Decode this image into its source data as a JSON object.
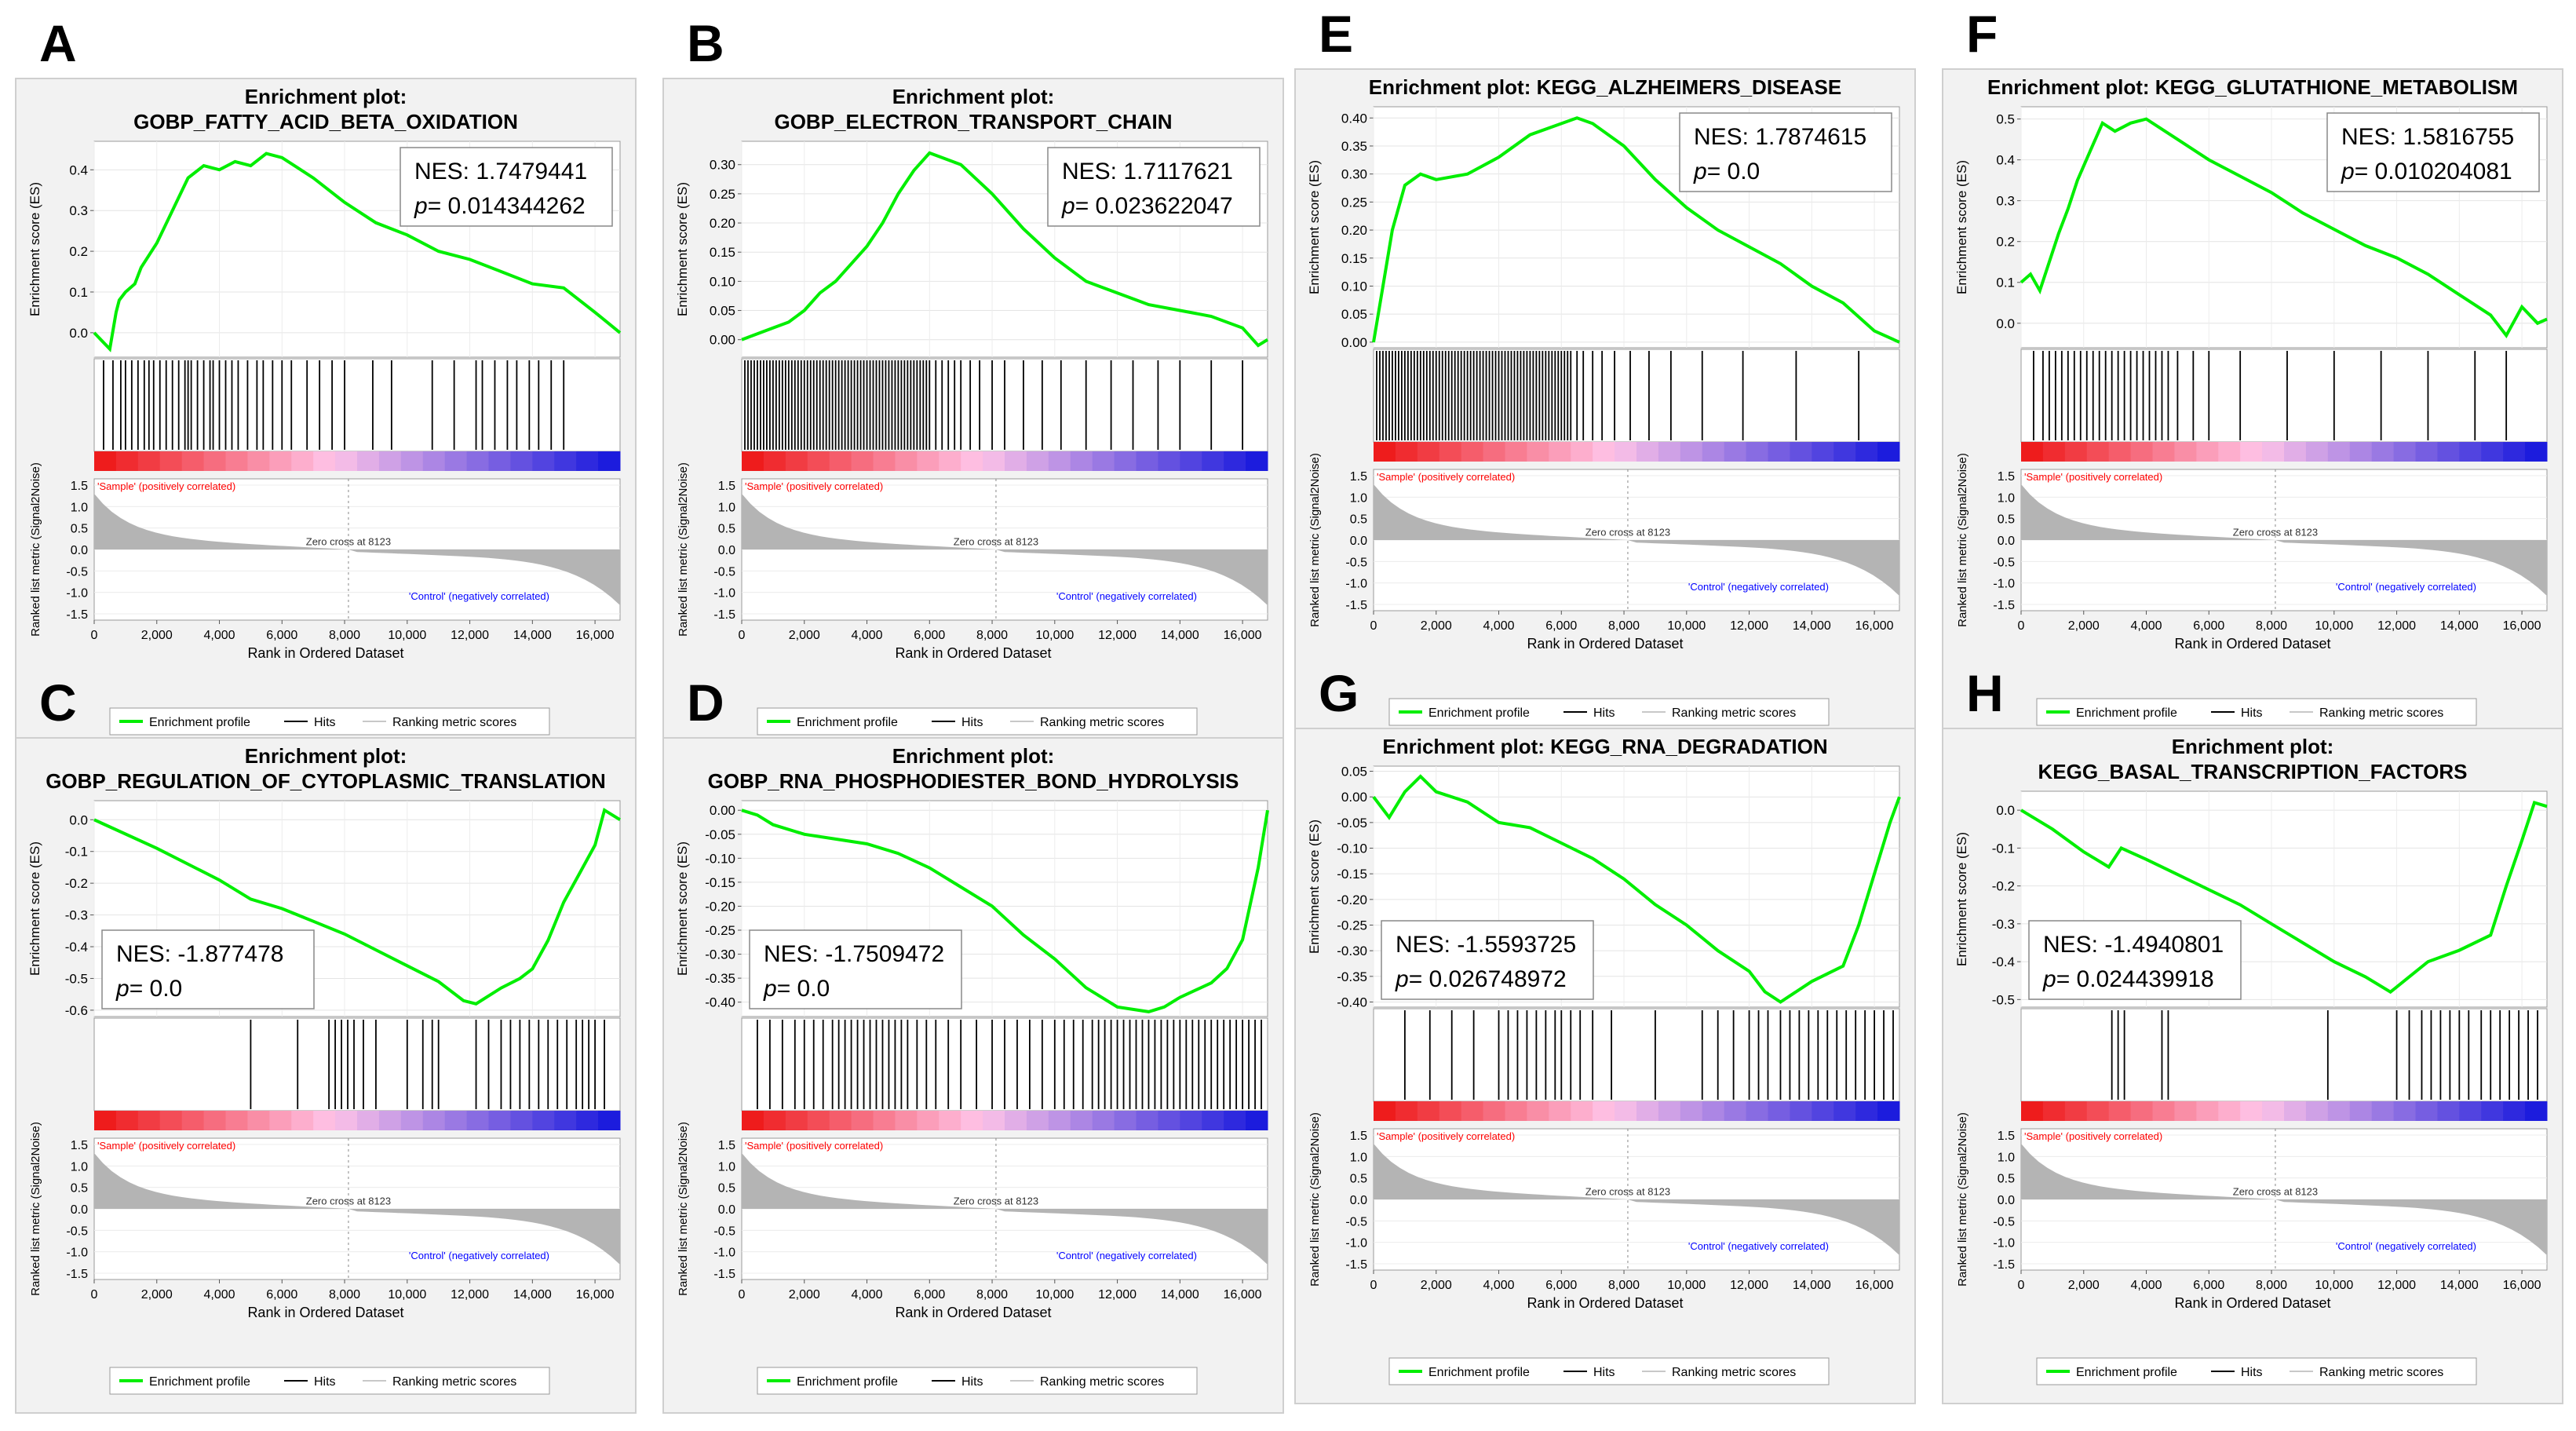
{
  "figure": {
    "common": {
      "plot_label": "Enrichment plot:",
      "y_label_es": "Enrichment score (ES)",
      "y_label_metric": "Ranked list metric (Signal2Noise)",
      "x_label": "Rank in Ordered Dataset",
      "zero_cross": "Zero cross at 8123",
      "pos_label": "'Sample' (positively correlated)",
      "neg_label": "'Control' (negatively correlated)",
      "legend": [
        "Enrichment profile",
        "Hits",
        "Ranking metric scores"
      ],
      "nes_prefix": "NES: ",
      "p_prefix": "p",
      "p_suffix": "= ",
      "x_ticks": [
        "0",
        "2,000",
        "4,000",
        "6,000",
        "8,000",
        "10,000",
        "12,000",
        "14,000",
        "16,000"
      ],
      "metric_ticks": [
        "1.5",
        "1.0",
        "0.5",
        "0.0",
        "-0.5",
        "-1.0",
        "-1.5"
      ]
    },
    "colors": {
      "enrichment_line": "#00ee00",
      "hits": "#000000",
      "metric_fill": "#b4b4b4",
      "pos_text": "#ff0000",
      "neg_text": "#0000ff",
      "panel_bg": "#f2f2f2",
      "bar_pos": "#ee1c1c",
      "bar_mid": "#ffc4e8",
      "bar_neg": "#1c1cdd"
    }
  },
  "chart_data": [
    {
      "panel": "A",
      "type": "line",
      "title": "Enrichment plot:",
      "subtitle": "GOBP_FATTY_ACID_BETA_OXIDATION",
      "nes": "1.7479441",
      "p": "0.014344262",
      "direction": "positive",
      "ylim": [
        -0.06,
        0.47
      ],
      "yticks": [
        "0.0",
        "0.1",
        "0.2",
        "0.3",
        "0.4"
      ],
      "x": [
        0,
        500,
        700,
        800,
        1000,
        1300,
        1500,
        2000,
        2500,
        3000,
        3500,
        4000,
        4500,
        5000,
        5500,
        6000,
        7000,
        8000,
        9000,
        10000,
        11000,
        12000,
        13000,
        14000,
        15000,
        16000,
        16800
      ],
      "es": [
        0,
        -0.04,
        0.05,
        0.08,
        0.1,
        0.12,
        0.16,
        0.22,
        0.3,
        0.38,
        0.41,
        0.4,
        0.42,
        0.41,
        0.44,
        0.43,
        0.38,
        0.32,
        0.27,
        0.24,
        0.2,
        0.18,
        0.15,
        0.12,
        0.11,
        0.05,
        0.0
      ],
      "hits": [
        300,
        600,
        850,
        1000,
        1200,
        1400,
        1600,
        1750,
        1900,
        2100,
        2300,
        2500,
        2700,
        2900,
        3000,
        3100,
        3300,
        3500,
        3700,
        3800,
        4000,
        4200,
        4400,
        4600,
        4900,
        5200,
        5400,
        5700,
        6000,
        6300,
        6800,
        7200,
        7600,
        8000,
        8900,
        9500,
        10800,
        11500,
        12200,
        12400,
        12800,
        13200,
        13500,
        13900,
        14200,
        14600,
        15000
      ]
    },
    {
      "panel": "B",
      "type": "line",
      "title": "Enrichment plot:",
      "subtitle": "GOBP_ELECTRON_TRANSPORT_CHAIN",
      "nes": "1.7117621",
      "p": "0.023622047",
      "direction": "positive",
      "ylim": [
        -0.03,
        0.34
      ],
      "yticks": [
        "0.00",
        "0.05",
        "0.10",
        "0.15",
        "0.20",
        "0.25",
        "0.30"
      ],
      "x": [
        0,
        500,
        1000,
        1500,
        2000,
        2500,
        3000,
        3500,
        4000,
        4500,
        5000,
        5500,
        6000,
        6500,
        7000,
        8000,
        9000,
        10000,
        11000,
        12000,
        13000,
        14000,
        15000,
        16000,
        16500,
        16800
      ],
      "es": [
        0,
        0.01,
        0.02,
        0.03,
        0.05,
        0.08,
        0.1,
        0.13,
        0.16,
        0.2,
        0.25,
        0.29,
        0.32,
        0.31,
        0.3,
        0.25,
        0.19,
        0.14,
        0.1,
        0.08,
        0.06,
        0.05,
        0.04,
        0.02,
        -0.01,
        0.0
      ],
      "hits": [
        100,
        200,
        300,
        400,
        500,
        600,
        700,
        800,
        900,
        1000,
        1100,
        1200,
        1300,
        1400,
        1500,
        1600,
        1700,
        1800,
        1900,
        2000,
        2100,
        2200,
        2300,
        2400,
        2500,
        2600,
        2700,
        2800,
        2900,
        3000,
        3100,
        3200,
        3300,
        3400,
        3500,
        3600,
        3700,
        3800,
        3900,
        4000,
        4100,
        4200,
        4300,
        4400,
        4500,
        4600,
        4700,
        4800,
        4900,
        5000,
        5100,
        5200,
        5300,
        5400,
        5500,
        5600,
        5700,
        5800,
        5900,
        6000,
        6200,
        6400,
        6600,
        6800,
        7000,
        7300,
        7600,
        8000,
        8400,
        9000,
        9600,
        10200,
        11000,
        11800,
        12500,
        13300,
        14000,
        15000,
        16000
      ]
    },
    {
      "panel": "C",
      "type": "line",
      "title": "Enrichment plot:",
      "subtitle": "GOBP_REGULATION_OF_CYTOPLASMIC_TRANSLATION",
      "nes": "-1.877478",
      "p": "0.0",
      "direction": "negative",
      "ylim": [
        -0.62,
        0.06
      ],
      "yticks": [
        "0.0",
        "-0.1",
        "-0.2",
        "-0.3",
        "-0.4",
        "-0.5",
        "-0.6"
      ],
      "x": [
        0,
        2000,
        4000,
        5000,
        6000,
        7000,
        8000,
        9000,
        10000,
        11000,
        11800,
        12200,
        13000,
        13600,
        14000,
        14500,
        15000,
        15500,
        16000,
        16300,
        16800
      ],
      "es": [
        0,
        -0.09,
        -0.19,
        -0.25,
        -0.28,
        -0.32,
        -0.36,
        -0.41,
        -0.46,
        -0.51,
        -0.57,
        -0.58,
        -0.53,
        -0.5,
        -0.47,
        -0.38,
        -0.26,
        -0.17,
        -0.08,
        0.03,
        0.0
      ],
      "hits": [
        5000,
        6500,
        7500,
        7700,
        7900,
        8100,
        8300,
        8600,
        9000,
        10000,
        10500,
        10800,
        11000,
        12200,
        12600,
        13000,
        13300,
        13600,
        13900,
        14200,
        14500,
        14800,
        15100,
        15400,
        15600,
        15800,
        16000,
        16300
      ]
    },
    {
      "panel": "D",
      "type": "line",
      "title": "Enrichment plot:",
      "subtitle": "GOBP_RNA_PHOSPHODIESTER_BOND_HYDROLYSIS",
      "nes": "-1.7509472",
      "p": "0.0",
      "direction": "negative",
      "ylim": [
        -0.43,
        0.02
      ],
      "yticks": [
        "0.00",
        "-0.05",
        "-0.10",
        "-0.15",
        "-0.20",
        "-0.25",
        "-0.30",
        "-0.35",
        "-0.40"
      ],
      "x": [
        0,
        500,
        1000,
        2000,
        3000,
        4000,
        5000,
        6000,
        7000,
        8000,
        9000,
        10000,
        11000,
        12000,
        13000,
        13500,
        14000,
        15000,
        15500,
        16000,
        16500,
        16800
      ],
      "es": [
        0,
        -0.01,
        -0.03,
        -0.05,
        -0.06,
        -0.07,
        -0.09,
        -0.12,
        -0.16,
        -0.2,
        -0.26,
        -0.31,
        -0.37,
        -0.41,
        -0.42,
        -0.41,
        -0.39,
        -0.36,
        -0.33,
        -0.27,
        -0.12,
        0.0
      ],
      "hits": [
        500,
        900,
        1300,
        1700,
        2000,
        2300,
        2600,
        2900,
        3100,
        3300,
        3500,
        3700,
        3900,
        4100,
        4300,
        4500,
        4700,
        4900,
        5100,
        5300,
        5600,
        5900,
        6200,
        6600,
        7000,
        7500,
        8000,
        8400,
        8800,
        9200,
        9600,
        10000,
        10300,
        10600,
        10900,
        11200,
        11400,
        11600,
        11800,
        12000,
        12200,
        12400,
        12600,
        12800,
        13000,
        13200,
        13400,
        13600,
        13800,
        14000,
        14200,
        14400,
        14600,
        14800,
        15000,
        15200,
        15400,
        15600,
        15800,
        16000,
        16200,
        16400,
        16600
      ]
    },
    {
      "panel": "E",
      "type": "line",
      "title": "Enrichment plot: KEGG_ALZHEIMERS_DISEASE",
      "subtitle": "",
      "nes": "1.7874615",
      "p": "0.0",
      "direction": "positive",
      "ylim": [
        -0.01,
        0.42
      ],
      "yticks": [
        "0.00",
        "0.05",
        "0.10",
        "0.15",
        "0.20",
        "0.25",
        "0.30",
        "0.35",
        "0.40"
      ],
      "x": [
        0,
        300,
        600,
        1000,
        1500,
        2000,
        3000,
        4000,
        5000,
        6000,
        6500,
        7000,
        8000,
        9000,
        10000,
        11000,
        12000,
        13000,
        14000,
        15000,
        16000,
        16800
      ],
      "es": [
        0,
        0.1,
        0.2,
        0.28,
        0.3,
        0.29,
        0.3,
        0.33,
        0.37,
        0.39,
        0.4,
        0.39,
        0.35,
        0.29,
        0.24,
        0.2,
        0.17,
        0.14,
        0.1,
        0.07,
        0.02,
        0.0
      ],
      "hits": [
        100,
        200,
        300,
        400,
        500,
        600,
        700,
        800,
        900,
        1000,
        1100,
        1200,
        1300,
        1400,
        1500,
        1600,
        1700,
        1800,
        1900,
        2000,
        2100,
        2200,
        2300,
        2400,
        2500,
        2600,
        2700,
        2800,
        2900,
        3000,
        3100,
        3200,
        3300,
        3400,
        3500,
        3600,
        3700,
        3800,
        3900,
        4000,
        4100,
        4200,
        4300,
        4400,
        4500,
        4600,
        4700,
        4800,
        4900,
        5000,
        5100,
        5200,
        5300,
        5400,
        5500,
        5600,
        5700,
        5800,
        5900,
        6000,
        6100,
        6200,
        6300,
        6500,
        6700,
        7000,
        7300,
        7700,
        8200,
        8800,
        9500,
        10500,
        11800,
        13500,
        15500
      ]
    },
    {
      "panel": "F",
      "type": "line",
      "title": "Enrichment plot: KEGG_GLUTATHIONE_METABOLISM",
      "subtitle": "",
      "nes": "1.5816755",
      "p": "0.010204081",
      "direction": "positive",
      "ylim": [
        -0.06,
        0.53
      ],
      "yticks": [
        "0.0",
        "0.1",
        "0.2",
        "0.3",
        "0.4",
        "0.5"
      ],
      "x": [
        0,
        300,
        600,
        900,
        1200,
        1500,
        1800,
        2200,
        2600,
        3000,
        3500,
        4000,
        5000,
        6000,
        7000,
        8000,
        9000,
        10000,
        11000,
        12000,
        13000,
        14000,
        15000,
        15500,
        16000,
        16500,
        16800
      ],
      "es": [
        0.1,
        0.12,
        0.08,
        0.15,
        0.22,
        0.28,
        0.35,
        0.42,
        0.49,
        0.47,
        0.49,
        0.5,
        0.45,
        0.4,
        0.36,
        0.32,
        0.27,
        0.23,
        0.19,
        0.16,
        0.12,
        0.07,
        0.02,
        -0.03,
        0.04,
        0.0,
        0.01
      ],
      "hits": [
        400,
        700,
        900,
        1100,
        1300,
        1500,
        1700,
        1900,
        2100,
        2300,
        2500,
        2700,
        2900,
        3100,
        3300,
        3500,
        3700,
        3900,
        4100,
        4300,
        4500,
        4700,
        5000,
        5500,
        6000,
        7000,
        8500,
        10000,
        11500,
        13000,
        14500,
        15500
      ]
    },
    {
      "panel": "G",
      "type": "line",
      "title": "Enrichment plot: KEGG_RNA_DEGRADATION",
      "subtitle": "",
      "nes": "-1.5593725",
      "p": "0.026748972",
      "direction": "negative",
      "ylim": [
        -0.41,
        0.06
      ],
      "yticks": [
        "0.05",
        "0.00",
        "-0.05",
        "-0.10",
        "-0.15",
        "-0.20",
        "-0.25",
        "-0.30",
        "-0.35",
        "-0.40"
      ],
      "x": [
        0,
        500,
        1000,
        1500,
        2000,
        3000,
        4000,
        5000,
        6000,
        7000,
        8000,
        9000,
        10000,
        11000,
        12000,
        12500,
        13000,
        14000,
        15000,
        15500,
        16000,
        16500,
        16800
      ],
      "es": [
        0,
        -0.04,
        0.01,
        0.04,
        0.01,
        -0.01,
        -0.05,
        -0.06,
        -0.09,
        -0.12,
        -0.16,
        -0.21,
        -0.25,
        -0.3,
        -0.34,
        -0.38,
        -0.4,
        -0.36,
        -0.33,
        -0.25,
        -0.15,
        -0.05,
        0.0
      ],
      "hits": [
        1000,
        1800,
        2500,
        3200,
        4000,
        4300,
        4600,
        4900,
        5200,
        5500,
        5800,
        6000,
        6300,
        6600,
        7000,
        7600,
        9000,
        10500,
        11000,
        11500,
        12000,
        12300,
        12600,
        13000,
        13300,
        13600,
        13900,
        14200,
        14500,
        14800,
        15100,
        15400,
        15700,
        16000,
        16300,
        16600
      ]
    },
    {
      "panel": "H",
      "type": "line",
      "title": "Enrichment plot:",
      "subtitle": "KEGG_BASAL_TRANSCRIPTION_FACTORS",
      "nes": "-1.4940801",
      "p": "0.024439918",
      "direction": "negative",
      "ylim": [
        -0.52,
        0.05
      ],
      "yticks": [
        "0.0",
        "-0.1",
        "-0.2",
        "-0.3",
        "-0.4",
        "-0.5"
      ],
      "x": [
        0,
        1000,
        2000,
        2800,
        3200,
        4000,
        5000,
        6000,
        7000,
        8000,
        9000,
        10000,
        11000,
        11800,
        12400,
        13000,
        14000,
        15000,
        15500,
        16000,
        16400,
        16800
      ],
      "es": [
        0,
        -0.05,
        -0.11,
        -0.15,
        -0.1,
        -0.13,
        -0.17,
        -0.21,
        -0.25,
        -0.3,
        -0.35,
        -0.4,
        -0.44,
        -0.48,
        -0.44,
        -0.4,
        -0.37,
        -0.33,
        -0.2,
        -0.08,
        0.02,
        0.01
      ],
      "hits": [
        2900,
        3100,
        3300,
        4500,
        4700,
        9800,
        12000,
        12400,
        12800,
        13100,
        13400,
        13700,
        14000,
        14300,
        14700,
        15000,
        15300,
        15600,
        15900,
        16200,
        16500
      ]
    }
  ]
}
